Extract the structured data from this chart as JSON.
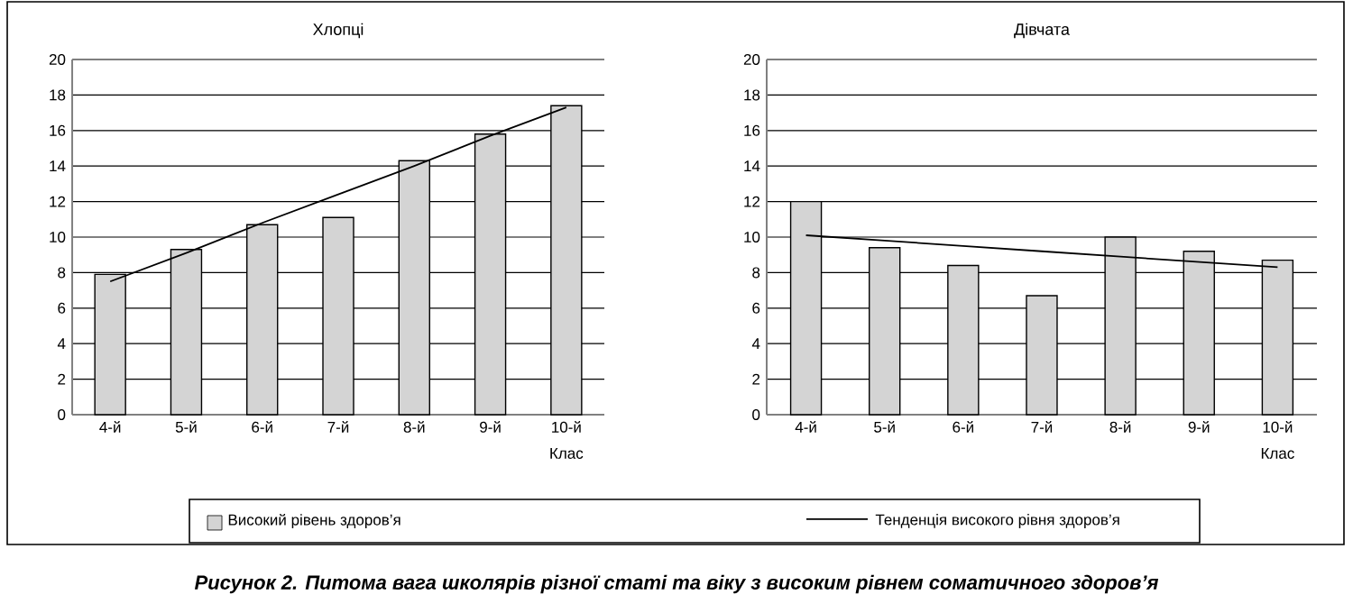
{
  "chart_data": [
    {
      "type": "bar",
      "title": "Хлопці",
      "xlabel": "Клас",
      "categories": [
        "4-й",
        "5-й",
        "6-й",
        "7-й",
        "8-й",
        "9-й",
        "10-й"
      ],
      "series": [
        {
          "name": "Високий рівень здоров’я",
          "color": "#d4d4d4",
          "values": [
            7.9,
            9.3,
            10.7,
            11.1,
            14.3,
            15.8,
            17.4
          ]
        },
        {
          "name": "Тенденція високого рівня здоров’я",
          "type": "line",
          "color": "#000000",
          "line_style": "solid",
          "values": [
            7.5,
            9.1,
            10.8,
            12.4,
            14.0,
            15.7,
            17.3
          ]
        }
      ],
      "ylim": [
        0,
        20
      ],
      "yticks": [
        0,
        2,
        4,
        6,
        8,
        10,
        12,
        14,
        16,
        18,
        20
      ],
      "grid": "y",
      "legend": "bottom",
      "annotations": [
        "Рисунок 2. Питома вага школярів різної статі та віку з високим рівнем соматичного здоров’я"
      ]
    },
    {
      "type": "bar",
      "title": "Дівчата",
      "xlabel": "Клас",
      "categories": [
        "4-й",
        "5-й",
        "6-й",
        "7-й",
        "8-й",
        "9-й",
        "10-й"
      ],
      "series": [
        {
          "color": "#d4d4d4",
          "values": [
            12.0,
            9.4,
            8.4,
            6.7,
            10.0,
            9.2,
            8.7
          ]
        },
        {
          "type": "line",
          "color": "#000000",
          "line_style": "solid",
          "values": [
            10.1,
            9.8,
            9.5,
            9.2,
            8.9,
            8.6,
            8.3
          ]
        }
      ],
      "ylim": [
        0,
        20
      ],
      "yticks": [
        0,
        2,
        4,
        6,
        8,
        10,
        12,
        14,
        16,
        18,
        20
      ],
      "grid": "y"
    }
  ]
}
